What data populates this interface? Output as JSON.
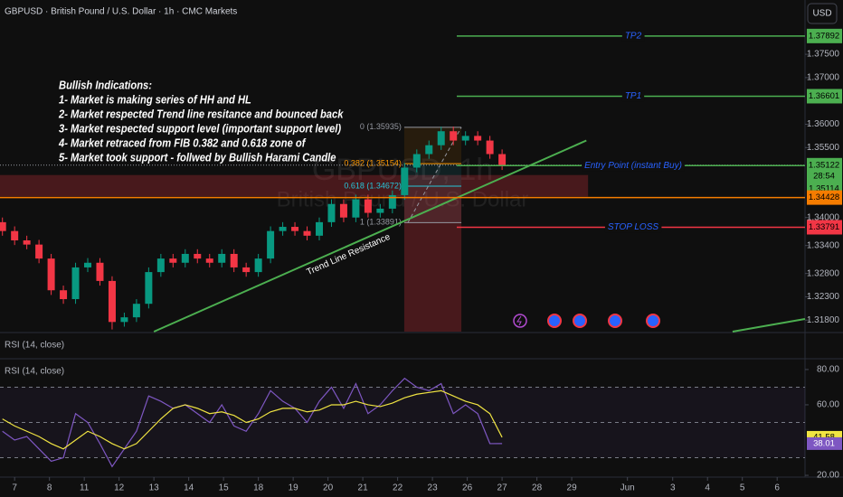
{
  "header": {
    "symbol": "GBPUSD · British Pound / U.S. Dollar · 1h · CMC Markets",
    "currency": "USD",
    "collapsed_pane": "RSI (14, close)"
  },
  "chart_data": [
    {
      "type": "candlestick",
      "watermark": [
        "GBPUSD, 1h",
        "British Pound / U.S. Dollar"
      ],
      "annotation": [
        "Bullish Indications:",
        "1- Market is making series of HH and HL",
        "2- Market respected Trend line resitance and bounced back",
        "3- Market respected support level (important support level)",
        "4- Market retraced from FIB 0.382 and 0.618 zone of",
        "5- Market took support - follwed by Bullish Harami Candle"
      ],
      "up_color": "#089981",
      "down_color": "#f23645",
      "x": [
        -0.35,
        0,
        0.35,
        0.7,
        1.05,
        1.4,
        1.75,
        2.1,
        2.45,
        2.8,
        3.15,
        3.5,
        3.85,
        4.2,
        4.55,
        4.9,
        5.25,
        5.6,
        5.95,
        6.3,
        6.65,
        7,
        7.35,
        7.7,
        8.05,
        8.4,
        8.75,
        9.1,
        9.45,
        9.8,
        10.15,
        10.5,
        10.85,
        11.2,
        11.55,
        11.9,
        12.25,
        12.6,
        12.95,
        13.3,
        13.65,
        14
      ],
      "open": [
        1.339,
        1.3371,
        1.3351,
        1.3342,
        1.3312,
        1.3244,
        1.3225,
        1.3293,
        1.3303,
        1.3264,
        1.3176,
        1.3186,
        1.3215,
        1.3283,
        1.3312,
        1.3303,
        1.3322,
        1.3312,
        1.3303,
        1.3322,
        1.3293,
        1.3283,
        1.3312,
        1.3371,
        1.338,
        1.3371,
        1.3361,
        1.339,
        1.3429,
        1.34,
        1.3439,
        1.341,
        1.3419,
        1.3448,
        1.3507,
        1.3536,
        1.3555,
        1.3585,
        1.3565,
        1.3575,
        1.3565,
        1.3536
      ],
      "high": [
        1.34,
        1.3381,
        1.3361,
        1.3352,
        1.3322,
        1.3254,
        1.3303,
        1.3313,
        1.3313,
        1.3274,
        1.3196,
        1.3225,
        1.3293,
        1.3322,
        1.3322,
        1.3332,
        1.3332,
        1.3322,
        1.3332,
        1.3332,
        1.3303,
        1.3322,
        1.3381,
        1.339,
        1.339,
        1.3381,
        1.34,
        1.3439,
        1.3439,
        1.3449,
        1.3449,
        1.3429,
        1.3458,
        1.3517,
        1.3546,
        1.3565,
        1.3595,
        1.3595,
        1.3585,
        1.3585,
        1.3575,
        1.3546
      ],
      "low": [
        1.3361,
        1.3341,
        1.3332,
        1.3302,
        1.3234,
        1.3215,
        1.3215,
        1.3283,
        1.3254,
        1.316,
        1.3166,
        1.3176,
        1.3205,
        1.3273,
        1.3293,
        1.3293,
        1.3302,
        1.3293,
        1.3293,
        1.3283,
        1.3273,
        1.3273,
        1.3302,
        1.3361,
        1.3361,
        1.3351,
        1.3351,
        1.338,
        1.339,
        1.339,
        1.34,
        1.34,
        1.3409,
        1.3438,
        1.3497,
        1.3526,
        1.3545,
        1.3555,
        1.3555,
        1.3555,
        1.3526,
        1.3502
      ],
      "close": [
        1.3371,
        1.3351,
        1.3342,
        1.3312,
        1.3244,
        1.3225,
        1.3293,
        1.3303,
        1.3264,
        1.3176,
        1.3186,
        1.3215,
        1.3283,
        1.3312,
        1.3303,
        1.3322,
        1.3312,
        1.3303,
        1.3322,
        1.3293,
        1.3283,
        1.3312,
        1.3371,
        1.338,
        1.3371,
        1.3361,
        1.339,
        1.3429,
        1.34,
        1.3439,
        1.341,
        1.3419,
        1.3448,
        1.3507,
        1.3536,
        1.3555,
        1.3585,
        1.3565,
        1.3575,
        1.3565,
        1.3536,
        1.3512
      ],
      "xlim": [
        -0.42,
        22.7
      ],
      "xticks": [
        {
          "value": 0,
          "label": "7"
        },
        {
          "value": 1,
          "label": "8"
        },
        {
          "value": 2,
          "label": "11"
        },
        {
          "value": 3,
          "label": "12"
        },
        {
          "value": 4,
          "label": "13"
        },
        {
          "value": 5,
          "label": "14"
        },
        {
          "value": 6,
          "label": "15"
        },
        {
          "value": 7,
          "label": "18"
        },
        {
          "value": 8,
          "label": "19"
        },
        {
          "value": 9,
          "label": "20"
        },
        {
          "value": 10,
          "label": "21"
        },
        {
          "value": 11,
          "label": "22"
        },
        {
          "value": 12,
          "label": "23"
        },
        {
          "value": 13,
          "label": "26"
        },
        {
          "value": 14,
          "label": "27"
        },
        {
          "value": 15,
          "label": "28"
        },
        {
          "value": 16,
          "label": "29"
        },
        {
          "value": 17.6,
          "label": "Jun"
        },
        {
          "value": 18.9,
          "label": "3"
        },
        {
          "value": 19.9,
          "label": "4"
        },
        {
          "value": 20.9,
          "label": "5"
        },
        {
          "value": 21.9,
          "label": "6"
        }
      ],
      "ylim": [
        1.31553,
        1.38664
      ],
      "yticks": [
        {
          "value": 1.375,
          "label": "1.37500"
        },
        {
          "value": 1.37,
          "label": "1.37000"
        },
        {
          "value": 1.36,
          "label": "1.36000"
        },
        {
          "value": 1.355,
          "label": "1.35500"
        },
        {
          "value": 1.34,
          "label": "1.34000"
        },
        {
          "value": 1.334,
          "label": "1.33400"
        },
        {
          "value": 1.328,
          "label": "1.32800"
        },
        {
          "value": 1.323,
          "label": "1.32300"
        },
        {
          "value": 1.318,
          "label": "1.31800"
        }
      ],
      "levels": [
        {
          "name": "TP2",
          "value": 1.37892,
          "color": "#4caf50"
        },
        {
          "name": "TP1",
          "value": 1.36601,
          "color": "#4caf50"
        },
        {
          "name": "Entry Point (instant Buy)",
          "value": 1.35114,
          "color": "#4caf50"
        },
        {
          "value": 1.34428,
          "color": "#f57c00"
        },
        {
          "name": "STOP LOSS",
          "value": 1.33791,
          "color": "#f23645"
        }
      ],
      "last_price": {
        "value": 1.35122,
        "countdown": "28:54",
        "color": "#4caf50"
      },
      "zones": [
        {
          "x": [
            -0.42,
            16.47
          ],
          "y": [
            1.34448,
            1.34911
          ],
          "color": "#f23645"
        },
        {
          "x": [
            11.19,
            12.83
          ],
          "y": [
            1.31553,
            1.34448
          ],
          "color": "#f23645"
        }
      ],
      "fib": {
        "x": [
          11.19,
          12.83
        ],
        "levels": [
          {
            "label": "0 (1.35935)",
            "value": 1.35935,
            "color": "#9598a1"
          },
          {
            "label": "0.382 (1.35154)",
            "value": 1.35154,
            "color": "#ff9800"
          },
          {
            "label": "0.618 (1.34672)",
            "value": 1.34672,
            "color": "#26c6da"
          },
          {
            "label": "1 (1.33891)",
            "value": 1.33891,
            "color": "#9598a1"
          }
        ]
      },
      "trendlines": [
        {
          "label": "Trend Line Resistance",
          "points": [
            [
              4.0,
              1.31553
            ],
            [
              16.42,
              1.35651
            ]
          ],
          "color": "#4caf50"
        },
        {
          "points": [
            [
              20.62,
              1.31553
            ],
            [
              22.7,
              1.31825
            ]
          ],
          "color": "#4caf50"
        }
      ]
    },
    {
      "type": "line",
      "title": "RSI (14, close)",
      "rsi": {
        "color": "#7e57c2",
        "values": [
          45,
          40,
          42,
          35,
          28,
          30,
          55,
          50,
          38,
          25,
          35,
          45,
          65,
          62,
          58,
          60,
          55,
          50,
          60,
          48,
          45,
          55,
          68,
          62,
          58,
          50,
          62,
          70,
          58,
          72,
          55,
          60,
          68,
          75,
          70,
          68,
          72,
          55,
          60,
          55,
          38,
          38.01
        ]
      },
      "ma": {
        "color": "#f0e442",
        "values": [
          52,
          48,
          45,
          42,
          38,
          35,
          40,
          45,
          42,
          38,
          35,
          38,
          45,
          52,
          58,
          60,
          58,
          55,
          56,
          54,
          50,
          52,
          56,
          58,
          58,
          56,
          57,
          60,
          60,
          62,
          60,
          59,
          61,
          64,
          66,
          67,
          68,
          65,
          62,
          60,
          55,
          41.58
        ]
      },
      "ylim": [
        19,
        85.6
      ],
      "yticks": [
        {
          "value": 80,
          "label": "80.00"
        },
        {
          "value": 60,
          "label": "60.00"
        },
        {
          "value": 20,
          "label": "20.00"
        }
      ],
      "levels": [
        30,
        50,
        70
      ]
    }
  ]
}
